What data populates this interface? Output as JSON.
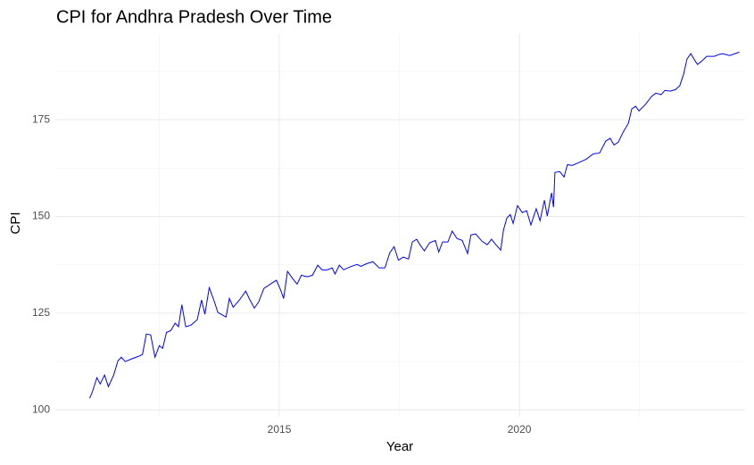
{
  "chart_data": {
    "type": "line",
    "title": "CPI for Andhra Pradesh Over Time",
    "x_label": "Year",
    "y_label": "CPI",
    "color": "blue",
    "grid": true,
    "x": [
      2011.05,
      2011.1,
      2011.2,
      2011.27,
      2011.36,
      2011.44,
      2011.55,
      2011.64,
      2011.71,
      2011.79,
      2011.93,
      2012.06,
      2012.15,
      2012.23,
      2012.32,
      2012.41,
      2012.5,
      2012.57,
      2012.65,
      2012.74,
      2012.83,
      2012.9,
      2012.97,
      2013.05,
      2013.16,
      2013.29,
      2013.38,
      2013.45,
      2013.54,
      2013.63,
      2013.72,
      2013.89,
      2013.96,
      2014.04,
      2014.17,
      2014.3,
      2014.38,
      2014.48,
      2014.57,
      2014.68,
      2014.85,
      2014.94,
      2015.02,
      2015.09,
      2015.17,
      2015.28,
      2015.37,
      2015.46,
      2015.58,
      2015.69,
      2015.8,
      2015.89,
      2016,
      2016.1,
      2016.16,
      2016.25,
      2016.34,
      2016.5,
      2016.62,
      2016.7,
      2016.82,
      2016.95,
      2017.08,
      2017.2,
      2017.3,
      2017.39,
      2017.48,
      2017.58,
      2017.69,
      2017.77,
      2017.86,
      2017.93,
      2018.02,
      2018.13,
      2018.25,
      2018.32,
      2018.4,
      2018.51,
      2018.6,
      2018.7,
      2018.81,
      2018.92,
      2018.99,
      2019.09,
      2019.22,
      2019.33,
      2019.42,
      2019.51,
      2019.61,
      2019.67,
      2019.74,
      2019.81,
      2019.87,
      2019.96,
      2020.06,
      2020.15,
      2020.24,
      2020.35,
      2020.43,
      2020.52,
      2020.58,
      2020.67,
      2020.71,
      2020.74,
      2020.84,
      2020.93,
      2021,
      2021.1,
      2021.23,
      2021.39,
      2021.54,
      2021.67,
      2021.8,
      2021.89,
      2021.97,
      2022.06,
      2022.16,
      2022.27,
      2022.34,
      2022.42,
      2022.49,
      2022.62,
      2022.75,
      2022.84,
      2022.95,
      2023.03,
      2023.14,
      2023.25,
      2023.34,
      2023.42,
      2023.49,
      2023.57,
      2023.66,
      2023.71,
      2023.8,
      2023.9,
      2023.99,
      2024.06,
      2024.16,
      2024.23,
      2024.38,
      2024.58
    ],
    "values": [
      103,
      104.4,
      108.3,
      106.7,
      109,
      106,
      109,
      112.7,
      113.6,
      112.5,
      113.2,
      113.8,
      114.3,
      119.6,
      119.4,
      113.6,
      116.6,
      115.9,
      120,
      120.5,
      122.4,
      121.5,
      127.2,
      121.5,
      121.9,
      123.3,
      128.4,
      124.7,
      131.6,
      128.6,
      125.2,
      124,
      128.8,
      126.5,
      128.4,
      130.7,
      128.6,
      126.3,
      127.9,
      131.4,
      132.8,
      133.5,
      131.2,
      128.8,
      135.8,
      133.9,
      132.5,
      134.8,
      134.4,
      134.8,
      137.4,
      136.2,
      136.2,
      136.7,
      135.1,
      137.4,
      136.2,
      137.1,
      137.6,
      137.1,
      137.8,
      138.3,
      136.7,
      136.7,
      140.6,
      142.2,
      138.7,
      139.5,
      139,
      143.4,
      144.1,
      142.7,
      141.1,
      143.2,
      143.8,
      140.8,
      143.4,
      143.4,
      146.2,
      144.3,
      143.8,
      140.4,
      145.2,
      145.5,
      143.6,
      142.7,
      144.1,
      142.7,
      141.3,
      146.6,
      149.6,
      150.5,
      148.2,
      152.8,
      151,
      151.5,
      147.8,
      152,
      148.9,
      154.2,
      150.1,
      156.1,
      152.4,
      161.4,
      161.6,
      160.2,
      163.4,
      163.2,
      163.9,
      164.8,
      166.2,
      166.4,
      169.5,
      170.2,
      168.5,
      169.2,
      171.8,
      174.1,
      177.8,
      178.5,
      177.3,
      178.9,
      181,
      181.9,
      181.5,
      182.6,
      182.4,
      182.8,
      183.8,
      186.8,
      190.7,
      192.1,
      190.2,
      189.3,
      190.2,
      191.4,
      191.4,
      191.4,
      191.9,
      192.1,
      191.6,
      192.5
    ],
    "xlim": [
      2010.335,
      2024.7
    ],
    "xticks": [
      2015,
      2020
    ],
    "x_minor_grid": [
      2012.5,
      2017.5,
      2022.5
    ],
    "ylim": [
      98.2,
      197.2
    ],
    "yticks": [
      100,
      125,
      150,
      175
    ],
    "y_minor_grid": [
      112.5,
      137.5,
      162.5,
      187.5
    ]
  }
}
